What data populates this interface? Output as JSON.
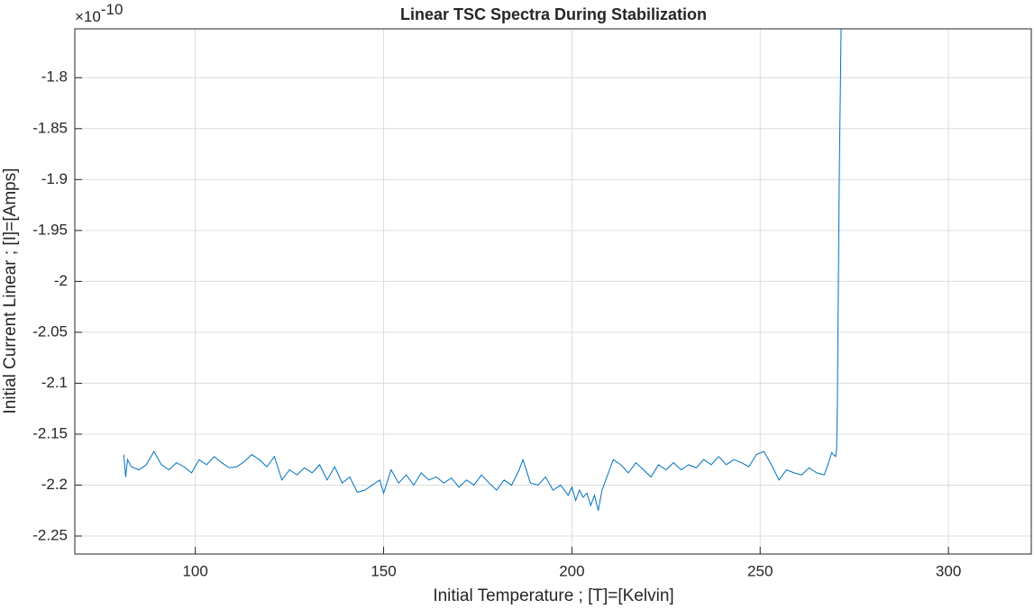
{
  "chart_data": {
    "type": "line",
    "title": "Linear TSC Spectra During Stabilization",
    "x_label": "Initial Temperature ; [T]=[Kelvin]",
    "y_label": "Initial Current Linear ; [I]=[Amps]",
    "y_multiplier": {
      "base": "×10",
      "exponent": "-10"
    },
    "grid": true,
    "xlim": [
      68,
      322
    ],
    "xticks": [
      100,
      150,
      200,
      250,
      300
    ],
    "ylim": [
      -2.2677,
      -1.752
    ],
    "yticks": [
      -1.8,
      -1.85,
      -1.9,
      -1.95,
      -2,
      -2.05,
      -2.1,
      -2.15,
      -2.2,
      -2.25
    ],
    "series": [
      {
        "color": "#0072bd",
        "x": [
          81,
          81.5,
          82,
          83,
          85,
          87,
          89,
          91,
          93,
          95,
          97,
          99,
          101,
          103,
          105,
          107,
          109,
          111,
          113,
          115,
          117,
          119,
          121,
          123,
          125,
          127,
          129,
          131,
          133,
          135,
          137,
          139,
          141,
          143,
          145,
          147,
          149,
          150,
          152,
          154,
          156,
          158,
          160,
          162,
          164,
          166,
          168,
          170,
          172,
          174,
          176,
          178,
          180,
          182,
          184,
          186,
          187,
          189,
          191,
          193,
          195,
          197,
          199,
          200,
          201,
          202,
          203,
          204,
          205,
          206,
          207,
          208,
          209,
          210,
          211,
          213,
          215,
          217,
          219,
          221,
          223,
          225,
          227,
          229,
          231,
          233,
          235,
          237,
          239,
          241,
          243,
          245,
          247,
          249,
          251,
          253,
          255,
          257,
          259,
          261,
          263,
          265,
          267,
          268,
          269,
          270,
          270.3,
          270.5,
          271,
          271.5
        ],
        "values": [
          -2.17,
          -2.192,
          -2.175,
          -2.182,
          -2.185,
          -2.18,
          -2.167,
          -2.18,
          -2.185,
          -2.178,
          -2.182,
          -2.188,
          -2.175,
          -2.18,
          -2.172,
          -2.178,
          -2.183,
          -2.182,
          -2.177,
          -2.17,
          -2.175,
          -2.182,
          -2.172,
          -2.195,
          -2.185,
          -2.19,
          -2.183,
          -2.188,
          -2.18,
          -2.195,
          -2.182,
          -2.198,
          -2.192,
          -2.207,
          -2.205,
          -2.2,
          -2.195,
          -2.208,
          -2.185,
          -2.198,
          -2.19,
          -2.2,
          -2.188,
          -2.195,
          -2.192,
          -2.198,
          -2.193,
          -2.202,
          -2.195,
          -2.2,
          -2.19,
          -2.198,
          -2.205,
          -2.195,
          -2.2,
          -2.185,
          -2.175,
          -2.198,
          -2.2,
          -2.192,
          -2.205,
          -2.2,
          -2.21,
          -2.202,
          -2.215,
          -2.205,
          -2.212,
          -2.208,
          -2.22,
          -2.21,
          -2.225,
          -2.205,
          -2.195,
          -2.185,
          -2.175,
          -2.18,
          -2.188,
          -2.178,
          -2.185,
          -2.192,
          -2.18,
          -2.185,
          -2.178,
          -2.185,
          -2.18,
          -2.183,
          -2.175,
          -2.18,
          -2.172,
          -2.18,
          -2.175,
          -2.178,
          -2.182,
          -2.17,
          -2.167,
          -2.18,
          -2.195,
          -2.185,
          -2.188,
          -2.19,
          -2.183,
          -2.188,
          -2.19,
          -2.18,
          -2.168,
          -2.172,
          -2.165,
          -2.12,
          -1.9,
          -1.75
        ]
      }
    ]
  }
}
